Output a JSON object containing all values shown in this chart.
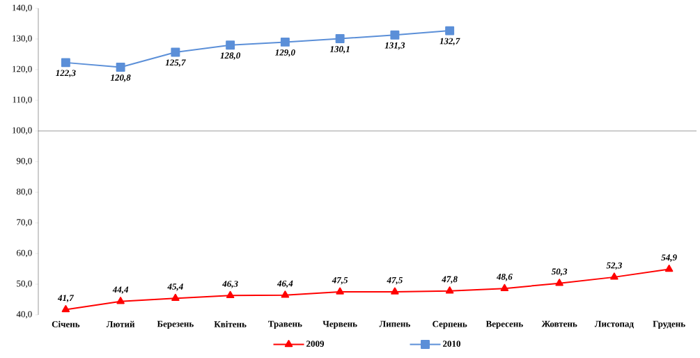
{
  "chart_data": {
    "type": "line",
    "categories": [
      "Січень",
      "Лютий",
      "Березень",
      "Квітень",
      "Травень",
      "Червень",
      "Липень",
      "Серпень",
      "Вересень",
      "Жовтень",
      "Листопад",
      "Грудень"
    ],
    "series": [
      {
        "name": "2009",
        "color": "#ff0000",
        "marker": "triangle",
        "values": [
          41.7,
          44.4,
          45.4,
          46.3,
          46.4,
          47.5,
          47.5,
          47.8,
          48.6,
          50.3,
          52.3,
          54.9
        ],
        "value_labels": [
          "41,7",
          "44,4",
          "45,4",
          "46,3",
          "46,4",
          "47,5",
          "47,5",
          "47,8",
          "48,6",
          "50,3",
          "52,3",
          "54,9"
        ]
      },
      {
        "name": "2010",
        "color": "#5b8fd8",
        "marker": "square",
        "values": [
          122.3,
          120.8,
          125.7,
          128.0,
          129.0,
          130.1,
          131.3,
          132.7,
          null,
          null,
          null,
          null
        ],
        "value_labels": [
          "122,3",
          "120,8",
          "125,7",
          "128,0",
          "129,0",
          "130,1",
          "131,3",
          "132,7",
          null,
          null,
          null,
          null
        ]
      }
    ],
    "ylim": [
      40,
      140
    ],
    "yticks": [
      {
        "value": 40,
        "label": "40,0"
      },
      {
        "value": 50,
        "label": "50,0"
      },
      {
        "value": 60,
        "label": "60,0"
      },
      {
        "value": 70,
        "label": "70,0"
      },
      {
        "value": 80,
        "label": "80,0"
      },
      {
        "value": 90,
        "label": "90,0"
      },
      {
        "value": 100,
        "label": "100,0"
      },
      {
        "value": 110,
        "label": "110,0"
      },
      {
        "value": 120,
        "label": "120,0"
      },
      {
        "value": 130,
        "label": "130,0"
      },
      {
        "value": 140,
        "label": "140,0"
      }
    ],
    "ref_lines": [
      {
        "axis": "y",
        "value": 100
      }
    ],
    "legend": "bottom",
    "grid": false
  }
}
